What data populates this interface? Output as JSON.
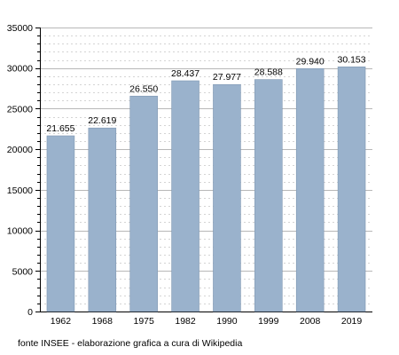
{
  "chart_data": {
    "type": "bar",
    "categories": [
      "1962",
      "1968",
      "1975",
      "1982",
      "1990",
      "1999",
      "2008",
      "2019"
    ],
    "values": [
      21655,
      22619,
      26550,
      28437,
      27977,
      28588,
      29940,
      30153
    ],
    "value_labels": [
      "21.655",
      "22.619",
      "26.550",
      "28.437",
      "27.977",
      "28.588",
      "29.940",
      "30.153"
    ],
    "title": "",
    "xlabel": "",
    "ylabel": "",
    "ylim": [
      0,
      35000
    ],
    "yticks": [
      0,
      5000,
      10000,
      15000,
      20000,
      25000,
      30000,
      35000
    ],
    "ytick_labels": [
      "0",
      "5000",
      "10000",
      "15000",
      "20000",
      "25000",
      "30000",
      "35000"
    ],
    "grid": true,
    "legend": "none",
    "bar_color": "#9ab2cc",
    "bar_edge_color": "#7f97b2"
  },
  "footer": {
    "source": "fonte INSEE - elaborazione grafica a cura di Wikipedia"
  }
}
